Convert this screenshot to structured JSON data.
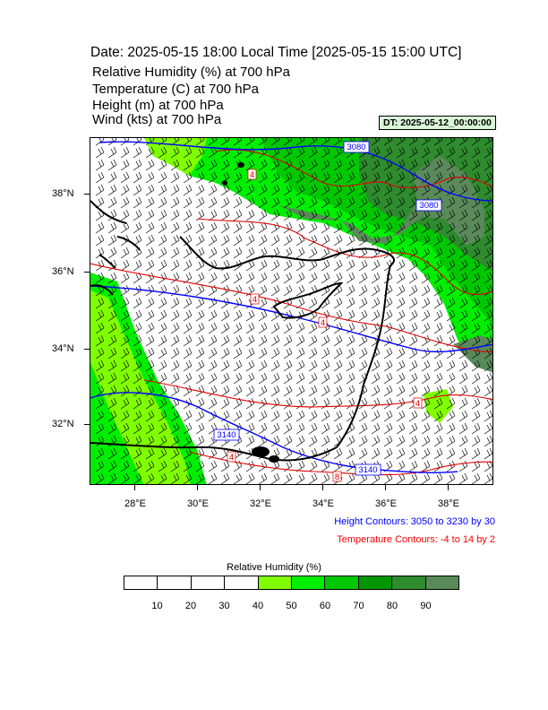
{
  "header": {
    "date_line": "Date: 2025-05-15  18:00 Local Time [2025-05-15  15:00 UTC]",
    "fields": [
      "Relative Humidity   (%)     at   700 hPa",
      "Temperature   (C)     at   700 hPa",
      "Height   (m)     at   700 hPa",
      "Wind   (kts)     at   700 hPa"
    ],
    "dt_badge": "DT: 2025-05-12_00:00:00"
  },
  "map": {
    "lat_labels": [
      "38°N",
      "36°N",
      "34°N",
      "32°N"
    ],
    "lon_labels": [
      "28°E",
      "30°E",
      "32°E",
      "34°E",
      "36°E",
      "38°E"
    ],
    "height_contour_labels": [
      "3080",
      "3080",
      "3140",
      "3140"
    ],
    "temperature_contour_labels": [
      "4",
      "4",
      "4",
      "4",
      "4",
      "8"
    ],
    "colors": {
      "coast": "#000000",
      "height_contour": "#0000ff",
      "temperature_contour": "#e00000",
      "wind_barb": "#000000"
    }
  },
  "notes": {
    "height_contours": "Height Contours: 3050 to 3230 by 30",
    "temperature_contours": "Temperature Contours: -4 to 14 by 2"
  },
  "colorbar": {
    "title": "Relative Humidity  (%)",
    "ticks": [
      "10",
      "20",
      "30",
      "40",
      "50",
      "60",
      "70",
      "80",
      "90"
    ],
    "colors": [
      "#ffffff",
      "#ffffff",
      "#ffffff",
      "#ffffff",
      "#80ff00",
      "#00ee00",
      "#00c800",
      "#009600",
      "#2e8b2e",
      "#5a8a5a"
    ]
  }
}
